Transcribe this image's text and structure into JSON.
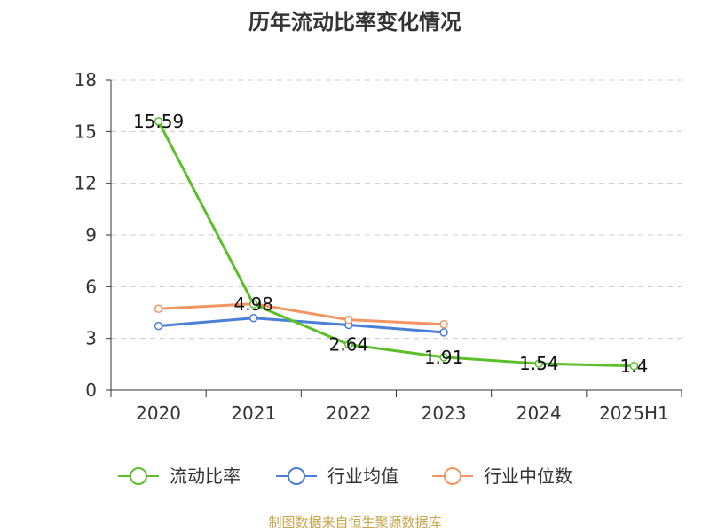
{
  "chart_data": {
    "type": "line",
    "title": "历年流动比率变化情况",
    "categories": [
      "2020",
      "2021",
      "2022",
      "2023",
      "2024",
      "2025H1"
    ],
    "yticks": [
      "0",
      "3",
      "6",
      "9",
      "12",
      "15",
      "18"
    ],
    "ylim": [
      0,
      18
    ],
    "grid": true,
    "legend_position": "bottom",
    "series": [
      {
        "name": "流动比率",
        "color": "#5cbf2a",
        "values": [
          15.59,
          4.98,
          2.64,
          1.91,
          1.54,
          1.4
        ],
        "labels": [
          "15.59",
          "4.98",
          "2.64",
          "1.91",
          "1.54",
          "1.4"
        ]
      },
      {
        "name": "行业均值",
        "color": "#4a7fd8",
        "values": [
          3.72,
          4.18,
          3.78,
          3.35,
          null,
          null
        ]
      },
      {
        "name": "行业中位数",
        "color": "#f39563",
        "values": [
          4.72,
          5.0,
          4.08,
          3.82,
          null,
          null
        ]
      }
    ]
  },
  "source": "制图数据来自恒生聚源数据库"
}
